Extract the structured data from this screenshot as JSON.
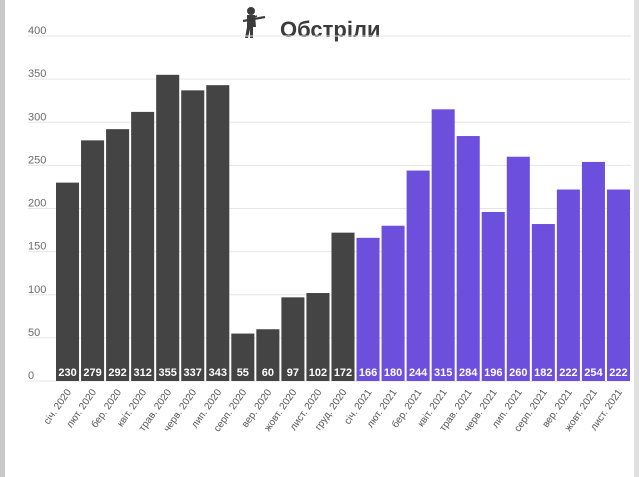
{
  "chart_data": {
    "type": "bar",
    "title": "Обстріли",
    "title_icon": "soldier-with-rifle-icon",
    "xlabel": "",
    "ylabel": "",
    "ylim": [
      0,
      400
    ],
    "yticks": [
      0,
      50,
      100,
      150,
      200,
      250,
      300,
      350,
      400
    ],
    "grid": "horizontal",
    "categories": [
      "січ. 2020",
      "лют. 2020",
      "бер. 2020",
      "квіт. 2020",
      "трав. 2020",
      "черв. 2020",
      "лип. 2020",
      "серп. 2020",
      "вер. 2020",
      "жовт. 2020",
      "лист. 2020",
      "груд. 2020",
      "січ. 2021",
      "лют. 2021",
      "бер. 2021",
      "квіт. 2021",
      "трав. 2021",
      "черв. 2021",
      "лип. 2021",
      "серп. 2021",
      "вер. 2021",
      "жовт. 2021",
      "лист. 2021"
    ],
    "values": [
      230,
      279,
      292,
      312,
      355,
      337,
      343,
      55,
      60,
      97,
      102,
      172,
      166,
      180,
      244,
      315,
      284,
      196,
      260,
      182,
      222,
      254,
      222
    ],
    "bar_colors": [
      "#444444",
      "#444444",
      "#444444",
      "#444444",
      "#444444",
      "#444444",
      "#444444",
      "#444444",
      "#444444",
      "#444444",
      "#444444",
      "#444444",
      "#6c4fdd",
      "#6c4fdd",
      "#6c4fdd",
      "#6c4fdd",
      "#6c4fdd",
      "#6c4fdd",
      "#6c4fdd",
      "#6c4fdd",
      "#6c4fdd",
      "#6c4fdd",
      "#6c4fdd"
    ],
    "colors": {
      "grid": "#e6e6e6",
      "value_label": "#ffffff",
      "frame_border": "#c9c9c9"
    }
  }
}
